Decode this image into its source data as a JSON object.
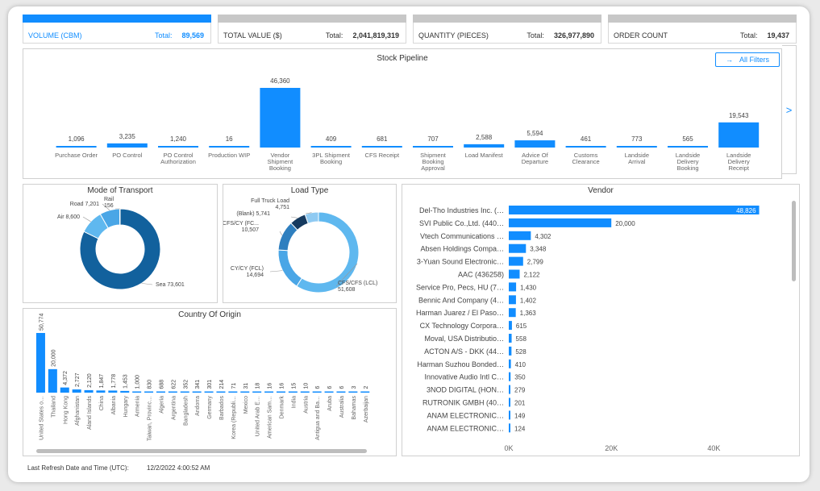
{
  "kpis": [
    {
      "label": "VOLUME (CBM)",
      "total_label": "Total:",
      "value": "89,569",
      "active": true
    },
    {
      "label": "TOTAL VALUE ($)",
      "total_label": "Total:",
      "value": "2,041,819,319",
      "active": false
    },
    {
      "label": "QUANTITY (PIECES)",
      "total_label": "Total:",
      "value": "326,977,890",
      "active": false
    },
    {
      "label": "ORDER COUNT",
      "total_label": "Total:",
      "value": "19,437",
      "active": false
    }
  ],
  "filters": {
    "arrow": "→",
    "label": "All Filters",
    "icon": "arrow-right-icon"
  },
  "next_arrow": ">",
  "refresh": {
    "label": "Last Refresh Date and Time (UTC):",
    "value": "12/2/2022 4:00:52 AM"
  },
  "colors": {
    "accent": "#118dff",
    "dark": "#12619d",
    "light": "#5fb8ef",
    "kpi_inactive": "#c7c7c7"
  },
  "chart_data": [
    {
      "id": "stock-pipeline",
      "type": "bar",
      "title": "Stock Pipeline",
      "categories": [
        [
          "Purchase Order"
        ],
        [
          "PO Control"
        ],
        [
          "PO Control",
          "Authorization"
        ],
        [
          "Production WIP"
        ],
        [
          "Vendor",
          "Shipment",
          "Booking"
        ],
        [
          "3PL Shipment",
          "Booking"
        ],
        [
          "CFS Receipt"
        ],
        [
          "Shipment",
          "Booking",
          "Approval"
        ],
        [
          "Load Manifest"
        ],
        [
          "Advice Of",
          "Departure"
        ],
        [
          "Customs",
          "Clearance"
        ],
        [
          "Landside",
          "Arrival"
        ],
        [
          "Landside",
          "Delivery",
          "Booking"
        ],
        [
          "Landside",
          "Delivery",
          "Receipt"
        ]
      ],
      "values": [
        1096,
        3235,
        1240,
        16,
        46360,
        409,
        681,
        707,
        2588,
        5594,
        461,
        773,
        565,
        19543
      ],
      "labels": [
        "1,096",
        "3,235",
        "1,240",
        "16",
        "46,360",
        "409",
        "681",
        "707",
        "2,588",
        "5,594",
        "461",
        "773",
        "565",
        "19,543"
      ],
      "ylim": [
        0,
        46360
      ]
    },
    {
      "id": "mode-of-transport",
      "type": "pie",
      "title": "Mode of Transport",
      "slices": [
        {
          "name": "Sea",
          "value": 73601,
          "label": "Sea 73,601",
          "color": "#12619d"
        },
        {
          "name": "Air",
          "value": 8600,
          "label": "Air 8,600",
          "color": "#5fb8ef"
        },
        {
          "name": "Road",
          "value": 7201,
          "label": "Road 7,201",
          "color": "#4aa6e6"
        },
        {
          "name": "Rail",
          "value": 156,
          "label_top": "Rail",
          "label_bottom": "156",
          "color": "#9fd3f7"
        }
      ]
    },
    {
      "id": "load-type",
      "type": "pie",
      "title": "Load Type",
      "slices": [
        {
          "name": "CFS/CFS (LCL)",
          "value": 51608,
          "label_top": "CFS/CFS (LCL)",
          "label_bottom": "51,608",
          "color": "#5fb8ef"
        },
        {
          "name": "CY/CY (FCL)",
          "value": 14694,
          "label_top": "CY/CY (FCL)",
          "label_bottom": "14,694",
          "color": "#4aa6e6"
        },
        {
          "name": "CFS/CY (FC..",
          "value": 10507,
          "label_top": "CFS/CY (FC...",
          "label_bottom": "10,507",
          "color": "#2f7fbf"
        },
        {
          "name": "(Blank)",
          "value": 5741,
          "label": "(Blank) 5,741",
          "color": "#163a5f"
        },
        {
          "name": "Full Truck Load",
          "value": 4751,
          "label_top": "Full Truck Load",
          "label_bottom": "4,751",
          "color": "#8fcaf2"
        }
      ]
    },
    {
      "id": "vendor",
      "type": "bar",
      "orientation": "horizontal",
      "title": "Vendor",
      "categories": [
        "Del-Tho Industries Inc. (…",
        "SVI Public Co.,Ltd. (440…",
        "Vtech Communications …",
        "Absen Holdings Compa…",
        "3-Yuan Sound Electronic…",
        "AAC (436258)",
        "Service Pro, Pecs, HU (7…",
        "Bennic And Company (4…",
        "Harman Juarez / El Paso…",
        "CX Technology Corpora…",
        "Moval, USA Distributio…",
        "ACTON A/S - DKK (44…",
        "Harman Suzhou Bonded…",
        "Innovative Audio Intl C…",
        "3NOD DIGITAL (HON…",
        "RUTRONIK GMBH (40…",
        "ANAM ELECTRONIC…",
        "ANAM ELECTRONIC…"
      ],
      "values": [
        48826,
        20000,
        4302,
        3348,
        2799,
        2122,
        1430,
        1402,
        1363,
        615,
        558,
        528,
        410,
        350,
        279,
        201,
        149,
        124
      ],
      "labels": [
        "48,826",
        "20,000",
        "4,302",
        "3,348",
        "2,799",
        "2,122",
        "1,430",
        "1,402",
        "1,363",
        "615",
        "558",
        "528",
        "410",
        "350",
        "279",
        "201",
        "149",
        "124"
      ],
      "xticks": [
        "0K",
        "20K",
        "40K"
      ],
      "xlim": [
        0,
        50000
      ]
    },
    {
      "id": "country-of-origin",
      "type": "bar",
      "title": "Country Of Origin",
      "categories": [
        "United States o…",
        "Thailand",
        "Hong Kong",
        "Afghanistan",
        "Aland Islands",
        "China",
        "Albania",
        "Hungary",
        "Armenia",
        "Taiwan, Provinc…",
        "Algeria",
        "Argentina",
        "Bangladesh",
        "Andorra",
        "Germany",
        "Barbados",
        "Korea (Republi…",
        "Mexico",
        "United Arab E…",
        "American Sam…",
        "Denmark",
        "India",
        "Austria",
        "Antigua and Ba…",
        "Aruba",
        "Australia",
        "Bahamas",
        "Azerbaijan"
      ],
      "values": [
        50774,
        20000,
        4372,
        2727,
        2120,
        1847,
        1778,
        1453,
        1000,
        830,
        688,
        622,
        352,
        341,
        301,
        214,
        71,
        31,
        18,
        16,
        16,
        15,
        10,
        6,
        6,
        6,
        3,
        2
      ],
      "labels": [
        "50,774",
        "20,000",
        "4,372",
        "2,727",
        "2,120",
        "1,847",
        "1,778",
        "1,453",
        "1,000",
        "830",
        "688",
        "622",
        "352",
        "341",
        "301",
        "214",
        "71",
        "31",
        "18",
        "16",
        "16",
        "15",
        "10",
        "6",
        "6",
        "6",
        "3",
        "2"
      ],
      "ylim": [
        0,
        50774
      ]
    }
  ]
}
